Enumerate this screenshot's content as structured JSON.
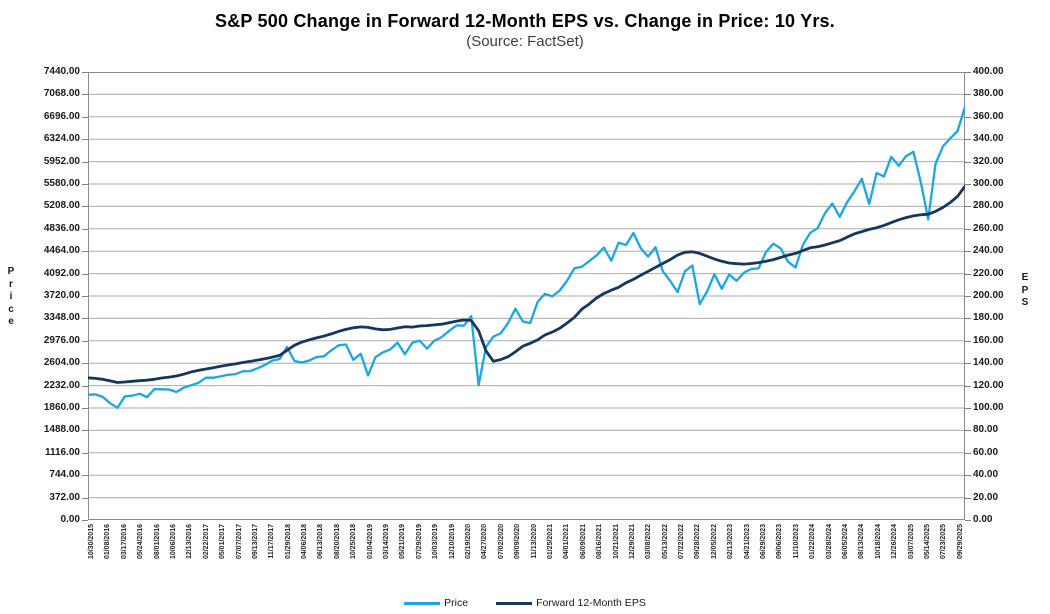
{
  "header": {
    "title": "S&P 500 Change in Forward 12-Month EPS vs. Change in Price: 10 Yrs.",
    "subtitle": "(Source: FactSet)"
  },
  "colors": {
    "price_line": "#1BA7E3",
    "eps_line": "#16365C",
    "gridline": "#ABABAB",
    "plot_border": "#8C8C8C",
    "axis_text": "#1A1A1A"
  },
  "legend": {
    "items": [
      {
        "label": "Price",
        "color": "#1BA7E3"
      },
      {
        "label": "Forward 12-Month EPS",
        "color": "#16365C"
      }
    ]
  },
  "chart_data": {
    "type": "line",
    "title": "S&P 500 Change in Forward 12-Month EPS vs. Change in Price: 10 Yrs.",
    "subtitle": "(Source: FactSet)",
    "grid": true,
    "legend_position": "bottom",
    "left_axis": {
      "label": "Price",
      "min": 0,
      "max": 7440,
      "step": 372,
      "tick_labels": [
        "7440.00",
        "7068.00",
        "6696.00",
        "6324.00",
        "5952.00",
        "5580.00",
        "5208.00",
        "4836.00",
        "4464.00",
        "4092.00",
        "3720.00",
        "3348.00",
        "2976.00",
        "2604.00",
        "2232.00",
        "1860.00",
        "1488.00",
        "1116.00",
        "744.00",
        "372.00",
        "0.00"
      ]
    },
    "right_axis": {
      "label": "EPS",
      "min": 0,
      "max": 400,
      "step": 20,
      "tick_labels": [
        "400.00",
        "380.00",
        "360.00",
        "340.00",
        "320.00",
        "300.00",
        "280.00",
        "260.00",
        "240.00",
        "220.00",
        "200.00",
        "180.00",
        "160.00",
        "140.00",
        "120.00",
        "100.00",
        "80.00",
        "60.00",
        "40.00",
        "20.00",
        "0.00"
      ]
    },
    "x_axis": {
      "tick_labels": [
        "10/30/2015",
        "01/08/2016",
        "03/17/2016",
        "05/24/2016",
        "08/01/2016",
        "10/06/2016",
        "12/13/2016",
        "02/22/2017",
        "05/01/2017",
        "07/07/2017",
        "09/13/2017",
        "11/17/2017",
        "01/29/2018",
        "04/06/2018",
        "06/13/2018",
        "08/20/2018",
        "10/25/2018",
        "01/04/2019",
        "03/14/2019",
        "05/21/2019",
        "07/29/2019",
        "10/03/2019",
        "12/10/2019",
        "02/19/2020",
        "04/27/2020",
        "07/02/2020",
        "09/09/2020",
        "11/13/2020",
        "01/25/2021",
        "04/01/2021",
        "06/09/2021",
        "08/16/2021",
        "10/21/2021",
        "12/29/2021",
        "03/08/2022",
        "05/13/2022",
        "07/22/2022",
        "09/28/2022",
        "12/05/2022",
        "02/13/2023",
        "04/21/2023",
        "06/29/2023",
        "09/06/2023",
        "11/10/2023",
        "01/22/2024",
        "03/28/2024",
        "06/05/2024",
        "08/13/2024",
        "10/18/2024",
        "12/26/2024",
        "03/07/2025",
        "05/14/2025",
        "07/23/2025",
        "09/29/2025"
      ]
    },
    "series": [
      {
        "name": "Price",
        "axis": "left",
        "color": "#1BA7E3",
        "line_width": 2.3,
        "values": [
          2079,
          2086,
          2044,
          1940,
          1864,
          2052,
          2065,
          2097,
          2040,
          2174,
          2171,
          2168,
          2126,
          2199,
          2239,
          2279,
          2364,
          2363,
          2384,
          2412,
          2423,
          2470,
          2472,
          2519,
          2575,
          2648,
          2674,
          2873,
          2641,
          2615,
          2648,
          2705,
          2718,
          2816,
          2902,
          2914,
          2658,
          2760,
          2400,
          2704,
          2784,
          2834,
          2946,
          2752,
          2942,
          2980,
          2847,
          2977,
          3038,
          3141,
          3231,
          3226,
          3386,
          2240,
          2874,
          3044,
          3100,
          3271,
          3508,
          3298,
          3270,
          3622,
          3756,
          3714,
          3811,
          3973,
          4181,
          4204,
          4298,
          4395,
          4523,
          4307,
          4605,
          4567,
          4766,
          4516,
          4374,
          4530,
          4132,
          3970,
          3785,
          4130,
          4226,
          3586,
          3797,
          4080,
          3840,
          4077,
          3970,
          4109,
          4169,
          4180,
          4450,
          4589,
          4508,
          4288,
          4194,
          4568,
          4770,
          4846,
          5096,
          5254,
          5036,
          5278,
          5460,
          5667,
          5246,
          5762,
          5705,
          6032,
          5882,
          6041,
          6115,
          5612,
          4990,
          5912,
          6205,
          6339,
          6460,
          6866
        ]
      },
      {
        "name": "Forward 12-Month EPS",
        "axis": "right",
        "color": "#16365C",
        "line_width": 2.8,
        "values": [
          127.0,
          126.4,
          125.6,
          124.2,
          122.8,
          123.2,
          123.8,
          124.4,
          124.8,
          125.6,
          126.8,
          127.6,
          128.6,
          130.2,
          132.2,
          133.6,
          134.8,
          136.0,
          137.2,
          138.4,
          139.4,
          140.6,
          141.6,
          142.8,
          144.0,
          145.4,
          147.0,
          151.5,
          156.0,
          158.8,
          160.8,
          162.6,
          164.2,
          166.2,
          168.4,
          170.2,
          171.6,
          172.4,
          172.0,
          170.6,
          169.8,
          170.2,
          171.4,
          172.6,
          172.2,
          173.2,
          173.6,
          174.2,
          174.8,
          176.2,
          177.6,
          178.6,
          178.2,
          169.0,
          151.0,
          141.8,
          143.2,
          145.8,
          150.2,
          155.2,
          157.8,
          160.8,
          165.2,
          167.8,
          171.2,
          175.8,
          181.0,
          188.2,
          192.8,
          198.2,
          202.2,
          205.2,
          207.8,
          211.8,
          214.8,
          218.5,
          222.0,
          225.5,
          229.0,
          232.5,
          236.5,
          239.0,
          239.5,
          238.0,
          235.5,
          233.0,
          231.0,
          229.5,
          228.8,
          228.5,
          229.0,
          229.8,
          231.0,
          232.5,
          234.5,
          236.5,
          238.0,
          240.5,
          243.0,
          244.0,
          245.5,
          247.5,
          249.5,
          252.5,
          255.5,
          257.5,
          259.5,
          261.0,
          263.0,
          265.5,
          268.0,
          270.0,
          271.5,
          272.5,
          273.0,
          275.5,
          279.0,
          283.5,
          289.0,
          298.0
        ]
      }
    ]
  }
}
